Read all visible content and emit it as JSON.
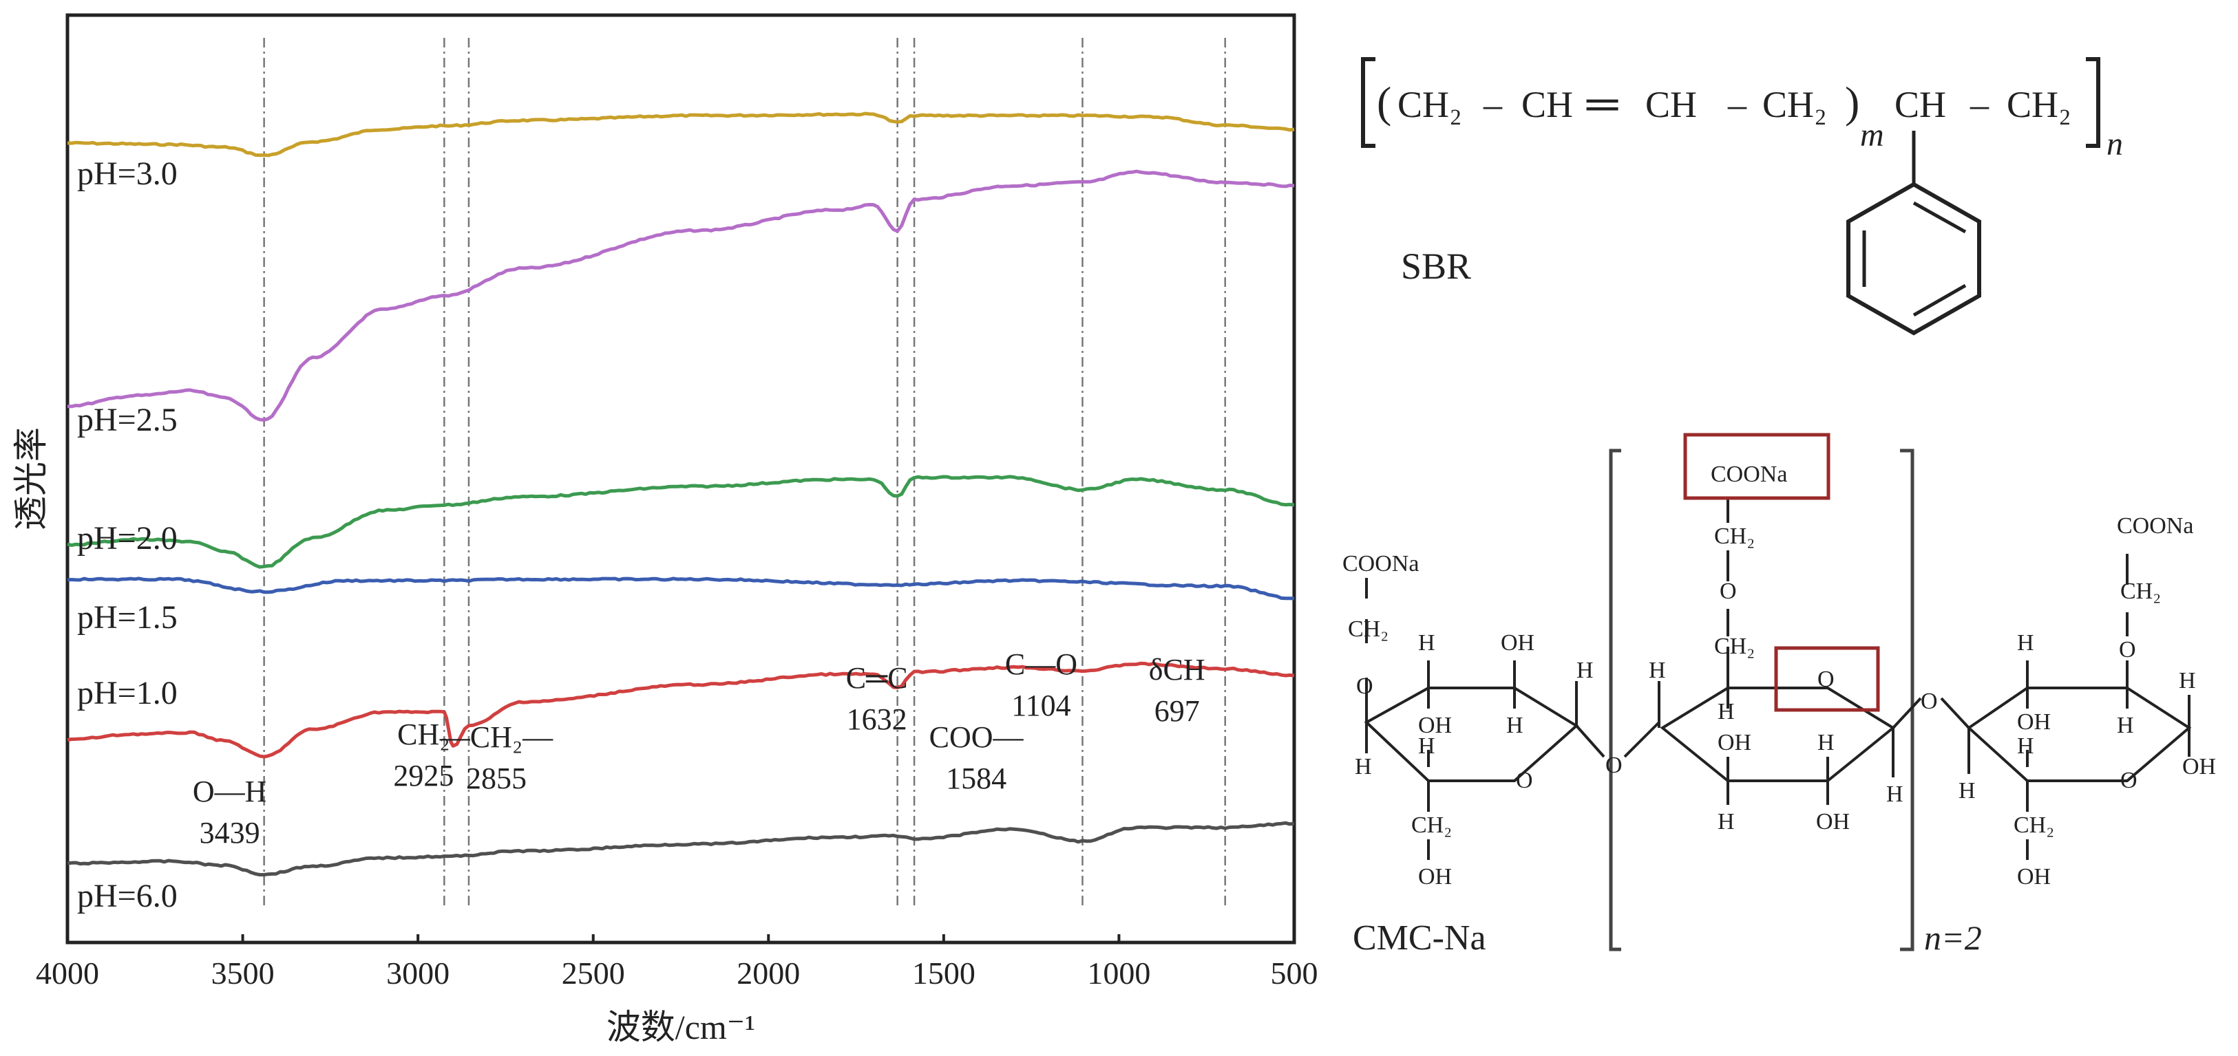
{
  "chart_data": {
    "type": "line",
    "title": "",
    "xlabel": "波数/cm⁻¹",
    "ylabel": "透光率",
    "xlim": [
      4000,
      500
    ],
    "x_reversed": true,
    "xticks": [
      "4000",
      "3500",
      "3000",
      "2500",
      "2000",
      "1500",
      "1000",
      "500"
    ],
    "y_ticks_shown": false,
    "series": [
      {
        "name": "pH=3.0",
        "color": "#c8a02a",
        "points": [
          [
            4000,
            0.0
          ],
          [
            3700,
            2
          ],
          [
            3550,
            6
          ],
          [
            3439,
            18
          ],
          [
            3300,
            -2
          ],
          [
            3100,
            -20
          ],
          [
            2925,
            -25
          ],
          [
            2700,
            -33
          ],
          [
            2200,
            -40
          ],
          [
            1700,
            -42
          ],
          [
            1632,
            -30
          ],
          [
            1584,
            -40
          ],
          [
            1300,
            -40
          ],
          [
            1104,
            -40
          ],
          [
            900,
            -38
          ],
          [
            697,
            -26
          ],
          [
            500,
            -20
          ]
        ]
      },
      {
        "name": "pH=2.5",
        "color": "#b46ec8",
        "points": [
          [
            4000,
            0
          ],
          [
            3800,
            -15
          ],
          [
            3650,
            -22
          ],
          [
            3550,
            -12
          ],
          [
            3439,
            20
          ],
          [
            3300,
            -70
          ],
          [
            3100,
            -140
          ],
          [
            2925,
            -160
          ],
          [
            2700,
            -200
          ],
          [
            2200,
            -255
          ],
          [
            1800,
            -285
          ],
          [
            1700,
            -292
          ],
          [
            1632,
            -255
          ],
          [
            1584,
            -300
          ],
          [
            1300,
            -320
          ],
          [
            1104,
            -325
          ],
          [
            950,
            -340
          ],
          [
            697,
            -325
          ],
          [
            500,
            -320
          ]
        ]
      },
      {
        "name": "pH=2.0",
        "color": "#3c9a50",
        "points": [
          [
            4000,
            0
          ],
          [
            3800,
            -8
          ],
          [
            3650,
            -5
          ],
          [
            3550,
            10
          ],
          [
            3439,
            32
          ],
          [
            3300,
            -10
          ],
          [
            3100,
            -50
          ],
          [
            2925,
            -58
          ],
          [
            2700,
            -70
          ],
          [
            2200,
            -85
          ],
          [
            1800,
            -95
          ],
          [
            1700,
            -95
          ],
          [
            1632,
            -70
          ],
          [
            1584,
            -98
          ],
          [
            1300,
            -98
          ],
          [
            1104,
            -80
          ],
          [
            950,
            -95
          ],
          [
            697,
            -80
          ],
          [
            500,
            -58
          ]
        ]
      },
      {
        "name": "pH=1.5",
        "color": "#3a5db0",
        "points": [
          [
            4000,
            0
          ],
          [
            3700,
            0
          ],
          [
            3439,
            18
          ],
          [
            3200,
            2
          ],
          [
            2925,
            2
          ],
          [
            2700,
            0
          ],
          [
            2200,
            0
          ],
          [
            1632,
            8
          ],
          [
            1300,
            2
          ],
          [
            697,
            10
          ],
          [
            500,
            28
          ]
        ]
      },
      {
        "name": "pH=1.0",
        "color": "#d04040",
        "points": [
          [
            4000,
            0
          ],
          [
            3800,
            -8
          ],
          [
            3650,
            -10
          ],
          [
            3550,
            2
          ],
          [
            3439,
            25
          ],
          [
            3300,
            -15
          ],
          [
            3100,
            -40
          ],
          [
            2925,
            -40
          ],
          [
            2900,
            10
          ],
          [
            2855,
            -20
          ],
          [
            2700,
            -55
          ],
          [
            2200,
            -80
          ],
          [
            1800,
            -95
          ],
          [
            1700,
            -95
          ],
          [
            1632,
            -75
          ],
          [
            1584,
            -98
          ],
          [
            1300,
            -105
          ],
          [
            1104,
            -100
          ],
          [
            950,
            -110
          ],
          [
            697,
            -103
          ],
          [
            500,
            -93
          ]
        ]
      },
      {
        "name": "pH=6.0",
        "color": "#505050",
        "points": [
          [
            4000,
            0
          ],
          [
            3700,
            -3
          ],
          [
            3550,
            3
          ],
          [
            3439,
            16
          ],
          [
            3300,
            4
          ],
          [
            3100,
            -8
          ],
          [
            2925,
            -10
          ],
          [
            2700,
            -18
          ],
          [
            2200,
            -28
          ],
          [
            1800,
            -38
          ],
          [
            1632,
            -40
          ],
          [
            1584,
            -35
          ],
          [
            1300,
            -50
          ],
          [
            1104,
            -32
          ],
          [
            950,
            -52
          ],
          [
            697,
            -52
          ],
          [
            500,
            -58
          ]
        ]
      }
    ],
    "reference_lines_x": [
      3439,
      2925,
      2855,
      1632,
      1584,
      1104,
      697
    ],
    "annotations": [
      {
        "name": "oh",
        "text": [
          "O—H",
          "3439"
        ]
      },
      {
        "name": "ch2",
        "text": [
          "CH₂",
          "2925"
        ]
      },
      {
        "name": "ch2b",
        "text": [
          "—CH₂—",
          "2855"
        ]
      },
      {
        "name": "cc",
        "text": [
          "C═C",
          "1632"
        ]
      },
      {
        "name": "coo",
        "text": [
          "COO—",
          "1584"
        ]
      },
      {
        "name": "co",
        "text": [
          "C—O",
          "1104"
        ]
      },
      {
        "name": "dch",
        "text": [
          "δCH",
          "697"
        ]
      }
    ]
  },
  "structures": {
    "sbr": {
      "name": "SBR",
      "formula": [
        "(",
        "CH₂",
        "–",
        "CH",
        "═",
        "CH",
        "–",
        "CH₂",
        ")",
        "m",
        "CH",
        "–",
        "CH₂",
        "n"
      ]
    },
    "cmc": {
      "name": "CMC-Na",
      "repeat": "n=2",
      "groups": {
        "coona": "COONa",
        "ch2": "CH₂",
        "o": "O",
        "oh": "OH",
        "h": "H"
      }
    }
  }
}
